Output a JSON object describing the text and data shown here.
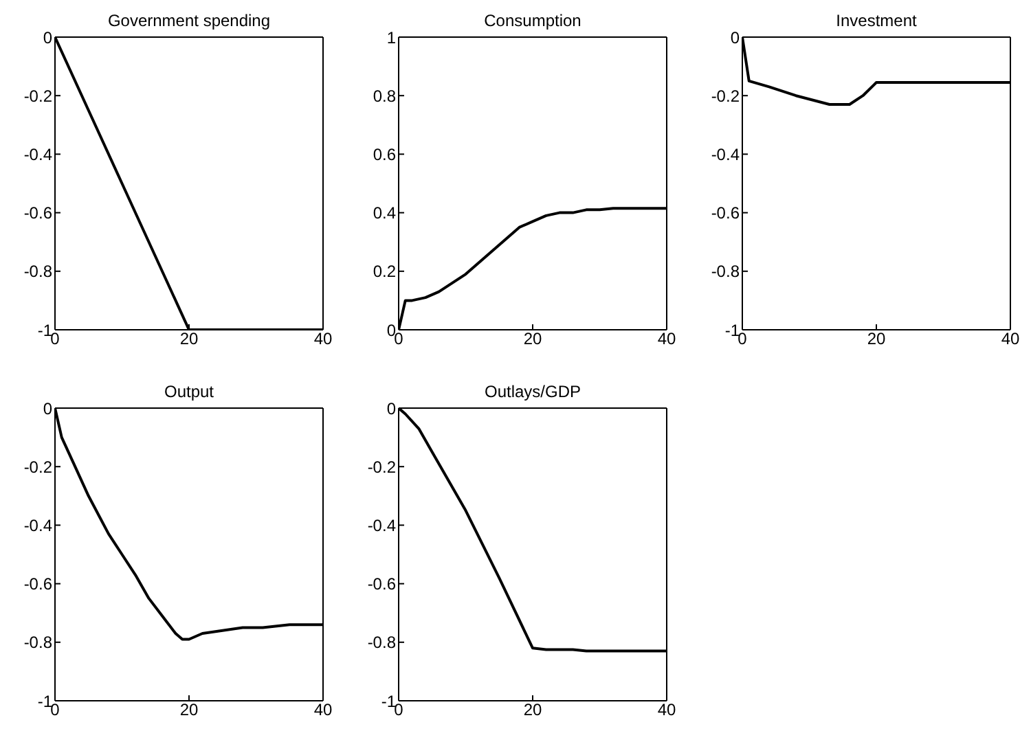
{
  "chart_data": [
    {
      "type": "line",
      "title": "Government spending",
      "x": [
        0,
        5,
        10,
        15,
        20,
        40
      ],
      "values": [
        0,
        -0.25,
        -0.5,
        -0.75,
        -1,
        -1
      ],
      "color": "#000000",
      "xlim": [
        0,
        40
      ],
      "xticks": [
        0,
        20,
        40
      ],
      "ylim": [
        -1,
        0
      ],
      "yticks": [
        -1,
        -0.8,
        -0.6,
        -0.4,
        -0.2,
        0
      ]
    },
    {
      "type": "line",
      "title": "Consumption",
      "x": [
        0,
        1,
        2,
        4,
        6,
        8,
        10,
        12,
        14,
        16,
        18,
        20,
        22,
        24,
        26,
        28,
        30,
        32,
        40
      ],
      "values": [
        0,
        0.1,
        0.1,
        0.11,
        0.13,
        0.16,
        0.19,
        0.23,
        0.27,
        0.31,
        0.35,
        0.37,
        0.39,
        0.4,
        0.4,
        0.41,
        0.41,
        0.415,
        0.415
      ],
      "color": "#000000",
      "xlim": [
        0,
        40
      ],
      "xticks": [
        0,
        20,
        40
      ],
      "ylim": [
        0,
        1
      ],
      "yticks": [
        0,
        0.2,
        0.4,
        0.6,
        0.8,
        1
      ]
    },
    {
      "type": "line",
      "title": "Investment",
      "x": [
        0,
        1,
        4,
        8,
        13,
        16,
        18,
        20,
        40
      ],
      "values": [
        0,
        -0.15,
        -0.17,
        -0.2,
        -0.23,
        -0.23,
        -0.2,
        -0.155,
        -0.155
      ],
      "color": "#000000",
      "xlim": [
        0,
        40
      ],
      "xticks": [
        0,
        20,
        40
      ],
      "ylim": [
        -1,
        0
      ],
      "yticks": [
        -1,
        -0.8,
        -0.6,
        -0.4,
        -0.2,
        0
      ]
    },
    {
      "type": "line",
      "title": "Output",
      "x": [
        0,
        1,
        3,
        5,
        8,
        10,
        12,
        14,
        16,
        18,
        19,
        20,
        22,
        25,
        28,
        31,
        35,
        40
      ],
      "values": [
        0,
        -0.1,
        -0.2,
        -0.3,
        -0.43,
        -0.5,
        -0.57,
        -0.65,
        -0.71,
        -0.77,
        -0.79,
        -0.79,
        -0.77,
        -0.76,
        -0.75,
        -0.75,
        -0.74,
        -0.74
      ],
      "color": "#000000",
      "xlim": [
        0,
        40
      ],
      "xticks": [
        0,
        20,
        40
      ],
      "ylim": [
        -1,
        0
      ],
      "yticks": [
        -1,
        -0.8,
        -0.6,
        -0.4,
        -0.2,
        0
      ]
    },
    {
      "type": "line",
      "title": "Outlays/GDP",
      "x": [
        0,
        1,
        3,
        5,
        10,
        15,
        20,
        22,
        26,
        28,
        40
      ],
      "values": [
        0,
        -0.02,
        -0.07,
        -0.15,
        -0.35,
        -0.58,
        -0.82,
        -0.825,
        -0.825,
        -0.83,
        -0.83
      ],
      "color": "#000000",
      "xlim": [
        0,
        40
      ],
      "xticks": [
        0,
        20,
        40
      ],
      "ylim": [
        -1,
        0
      ],
      "yticks": [
        -1,
        -0.8,
        -0.6,
        -0.4,
        -0.2,
        0
      ]
    }
  ]
}
